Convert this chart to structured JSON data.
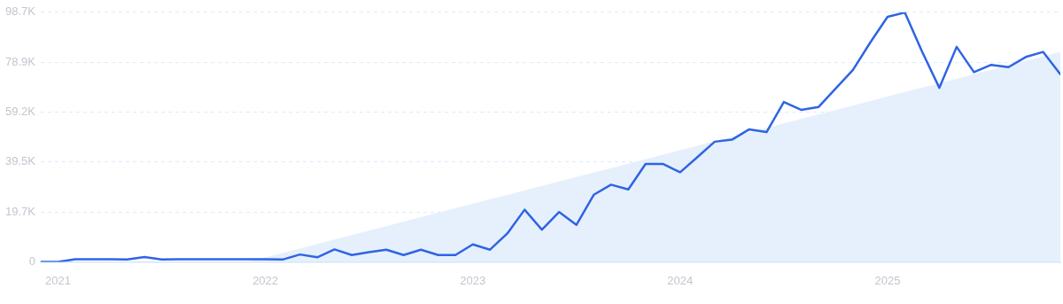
{
  "chart_data": {
    "type": "line",
    "x": [
      "2020-12",
      "2021-01",
      "2021-02",
      "2021-03",
      "2021-04",
      "2021-05",
      "2021-06",
      "2021-07",
      "2021-08",
      "2021-09",
      "2021-10",
      "2021-11",
      "2021-12",
      "2022-01",
      "2022-02",
      "2022-03",
      "2022-04",
      "2022-05",
      "2022-06",
      "2022-07",
      "2022-08",
      "2022-09",
      "2022-10",
      "2022-11",
      "2022-12",
      "2023-01",
      "2023-02",
      "2023-03",
      "2023-04",
      "2023-05",
      "2023-06",
      "2023-07",
      "2023-08",
      "2023-09",
      "2023-10",
      "2023-11",
      "2023-12",
      "2024-01",
      "2024-02",
      "2024-03",
      "2024-04",
      "2024-05",
      "2024-06",
      "2024-07",
      "2024-08",
      "2024-09",
      "2024-10",
      "2024-11",
      "2024-12",
      "2025-01",
      "2025-02",
      "2025-03",
      "2025-04",
      "2025-05",
      "2025-06",
      "2025-07",
      "2025-08",
      "2025-09",
      "2025-10",
      "2025-11"
    ],
    "series": [
      {
        "type": "area",
        "color": "#e6f0fc",
        "x": [
          "2021-12",
          "2025-11"
        ],
        "values": [
          0,
          83000
        ]
      },
      {
        "color": "#2f64e3",
        "values": [
          0,
          0,
          1000,
          1000,
          1000,
          900,
          1900,
          900,
          1000,
          1000,
          1000,
          1000,
          1000,
          1000,
          900,
          2900,
          1800,
          4900,
          2700,
          3800,
          4800,
          2700,
          4800,
          2700,
          2700,
          6900,
          4800,
          11200,
          20600,
          12700,
          19700,
          14600,
          26500,
          30500,
          28600,
          38700,
          38700,
          35400,
          41400,
          47500,
          48300,
          52400,
          51300,
          63200,
          60100,
          61200,
          68500,
          75900,
          86700,
          96900,
          98600,
          83100,
          68800,
          85000,
          75000,
          77900,
          77000,
          81000,
          83000,
          74200
        ]
      }
    ],
    "xlim": [
      "2020-12",
      "2025-11"
    ],
    "xticks": [
      "2021",
      "2022",
      "2023",
      "2024",
      "2025"
    ],
    "ylim": [
      0,
      98700
    ],
    "yticks": [
      0,
      {
        "value": 19700,
        "label": "19.7K"
      },
      {
        "value": 39500,
        "label": "39.5K"
      },
      {
        "value": 59200,
        "label": "59.2K"
      },
      {
        "value": 78900,
        "label": "78.9K"
      },
      {
        "value": 98700,
        "label": "98.7K"
      }
    ],
    "grid": "y",
    "legend": false,
    "marker": "none",
    "line_style": "solid"
  }
}
